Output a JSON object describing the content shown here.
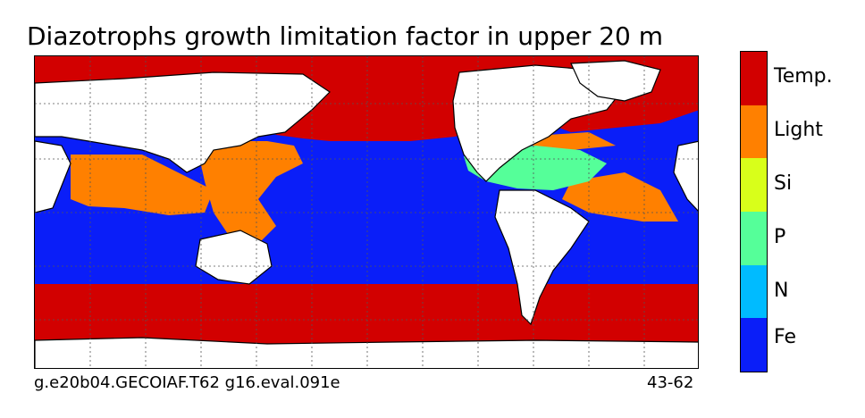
{
  "title": "Diazotrophs growth limitation factor in upper 20 m",
  "footer": {
    "case_name": "g.e20b04.GECOIAF.T62 g16.eval.091e",
    "years": "43-62"
  },
  "colorbar": {
    "categories": [
      {
        "label": "Temp.",
        "color": "#d20000"
      },
      {
        "label": "Light",
        "color": "#ff8000"
      },
      {
        "label": "Si",
        "color": "#d8ff1a"
      },
      {
        "label": "P",
        "color": "#55ff99"
      },
      {
        "label": "N",
        "color": "#00bbff"
      },
      {
        "label": "Fe",
        "color": "#0a1ef8"
      }
    ]
  },
  "map_colors": {
    "land": "#ffffff",
    "coast": "#000000",
    "grid": "#555555"
  }
}
